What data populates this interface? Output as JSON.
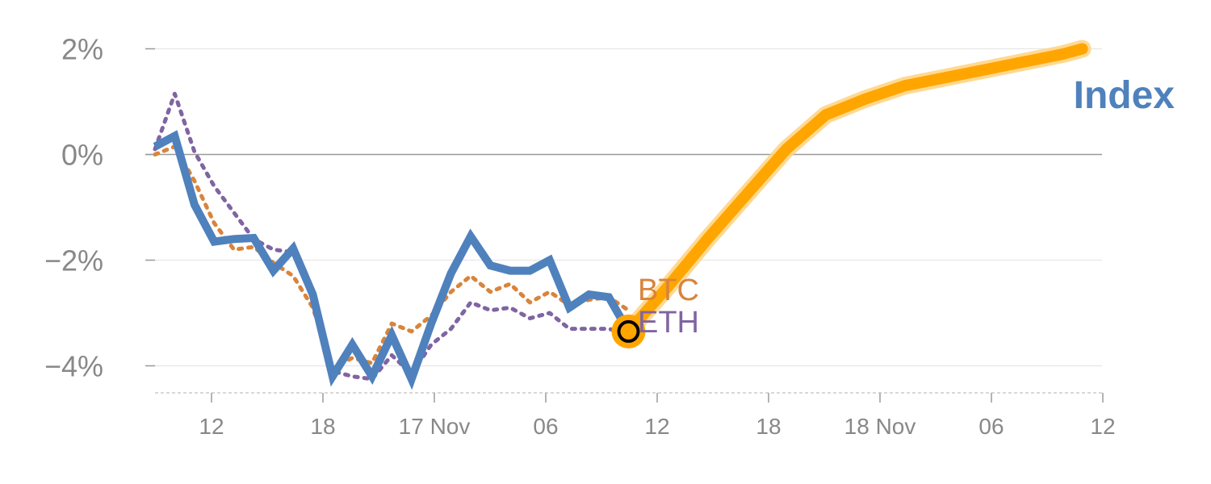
{
  "chart_data": {
    "type": "line",
    "title": "",
    "xlabel": "",
    "ylabel": "",
    "x_ticks": [
      "12",
      "18",
      "17 Nov",
      "06",
      "12",
      "18",
      "18 Nov",
      "06",
      "12"
    ],
    "xlim": [
      0,
      48
    ],
    "ylim": [
      -4.5,
      2.1
    ],
    "y_ticks": [
      2,
      0,
      -2,
      -4
    ],
    "y_tick_labels": [
      "2%",
      "0%",
      "−2%",
      "−4%"
    ],
    "grid": true,
    "series": [
      {
        "name": "Index",
        "style": "solid",
        "color": "#4f81bd",
        "x": [
          0,
          1,
          2,
          3,
          4,
          5,
          6,
          7,
          8,
          9,
          10,
          11,
          12,
          13,
          14,
          15,
          16,
          17,
          18,
          19,
          20,
          21,
          22,
          23,
          24
        ],
        "y": [
          0.15,
          0.35,
          -0.95,
          -1.65,
          -1.6,
          -1.58,
          -2.2,
          -1.78,
          -2.65,
          -4.2,
          -3.6,
          -4.2,
          -3.42,
          -4.25,
          -3.2,
          -2.25,
          -1.55,
          -2.1,
          -2.2,
          -2.2,
          -2.0,
          -2.9,
          -2.65,
          -2.7,
          -3.35
        ]
      },
      {
        "name": "BTC",
        "style": "dotted",
        "color": "#d9843b",
        "x": [
          0,
          1,
          2,
          3,
          4,
          5,
          6,
          7,
          8,
          9,
          10,
          11,
          12,
          13,
          14,
          15,
          16,
          17,
          18,
          19,
          20,
          21,
          22,
          23,
          24
        ],
        "y": [
          0.0,
          0.15,
          -0.5,
          -1.3,
          -1.8,
          -1.75,
          -2.05,
          -2.3,
          -2.9,
          -4.05,
          -3.85,
          -3.95,
          -3.2,
          -3.35,
          -3.05,
          -2.6,
          -2.3,
          -2.6,
          -2.45,
          -2.8,
          -2.6,
          -2.85,
          -2.75,
          -2.7,
          -2.95
        ]
      },
      {
        "name": "ETH",
        "style": "dotted",
        "color": "#8064a2",
        "x": [
          0,
          1,
          2,
          3,
          4,
          5,
          6,
          7,
          8,
          9,
          10,
          11,
          12,
          13,
          14,
          15,
          16,
          17,
          18,
          19,
          20,
          21,
          22,
          23,
          24
        ],
        "y": [
          0.1,
          1.15,
          0.05,
          -0.6,
          -1.1,
          -1.6,
          -1.8,
          -1.85,
          -2.7,
          -4.1,
          -4.2,
          -4.25,
          -3.8,
          -4.15,
          -3.6,
          -3.3,
          -2.8,
          -2.95,
          -2.9,
          -3.1,
          -3.0,
          -3.3,
          -3.3,
          -3.3,
          -3.4
        ]
      },
      {
        "name": "Index",
        "style": "projection",
        "color": "#ffa500",
        "x": [
          24,
          26,
          28,
          30,
          32,
          34,
          36,
          38,
          40,
          42,
          44,
          46,
          47
        ],
        "y": [
          -3.35,
          -2.5,
          -1.6,
          -0.75,
          0.1,
          0.75,
          1.05,
          1.3,
          1.45,
          1.6,
          1.75,
          1.9,
          2.0
        ]
      }
    ],
    "labels": {
      "btc": "BTC",
      "eth": "ETH",
      "index": "Index"
    },
    "marker": {
      "x": 24,
      "y": -3.35
    }
  }
}
